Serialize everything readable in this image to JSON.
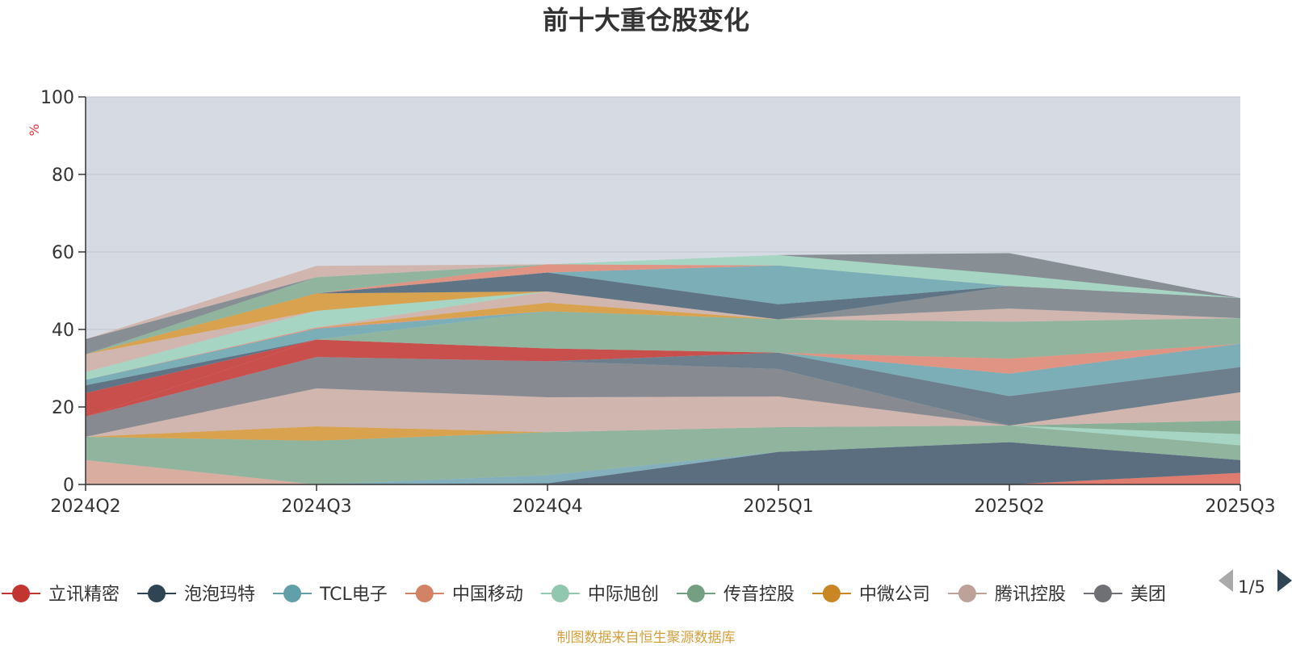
{
  "chart_data": {
    "type": "area",
    "title": "前十大重仓股变化",
    "ylabel": "%",
    "xlabel": "",
    "ylim": [
      0,
      100
    ],
    "y_ticks": [
      "0",
      "20",
      "40",
      "60",
      "80",
      "100"
    ],
    "categories": [
      "2024Q2",
      "2024Q3",
      "2024Q4",
      "2025Q1",
      "2025Q2",
      "2025Q3"
    ],
    "grid": true,
    "legend_position": "bottom",
    "legend_page": "1/5",
    "series_order_note": "bands listed bottom to top",
    "series": [
      {
        "name": "腾讯控股",
        "color": "#D9A797",
        "values": [
          6.3,
          0,
          0,
          0,
          0,
          0
        ]
      },
      {
        "name": "中国移动",
        "color": "#E06D5E",
        "values": [
          0,
          0,
          0,
          0,
          0,
          3.0
        ]
      },
      {
        "name": "泡泡玛特",
        "color": "#4A5F72",
        "values": [
          0,
          0,
          0.3,
          8.4,
          10.9,
          3.3
        ]
      },
      {
        "name": "TCL电子",
        "color": "#78AAB6",
        "values": [
          0,
          0,
          2.1,
          0,
          0,
          0
        ]
      },
      {
        "name": "传音控股",
        "color": "#86AE94",
        "values": [
          6.0,
          11.3,
          11.1,
          6.4,
          4.3,
          3.8
        ]
      },
      {
        "name": "中际旭创",
        "color": "#9FD4BE",
        "values": [
          0,
          0,
          0,
          0,
          0,
          2.9
        ]
      },
      {
        "name": "传音控股",
        "color": "#7FA88C",
        "values": [
          0,
          0,
          0,
          0,
          0,
          3.5
        ]
      },
      {
        "name": "中微公司",
        "color": "#D89A3A",
        "values": [
          0,
          3.7,
          0,
          0,
          0,
          0
        ]
      },
      {
        "name": "腾讯控股",
        "color": "#CFB0A6",
        "values": [
          0,
          9.8,
          9.0,
          7.9,
          0,
          7.3
        ]
      },
      {
        "name": "美团",
        "color": "#7C7F85",
        "values": [
          5.2,
          8.1,
          9.3,
          7.1,
          0,
          0
        ]
      },
      {
        "name": "泡泡玛特",
        "color": "#5E7280",
        "values": [
          0,
          0,
          0,
          4.2,
          7.6,
          6.5
        ]
      },
      {
        "name": "TCL电子",
        "color": "#6FA7B1",
        "values": [
          0,
          0,
          0,
          0,
          5.8,
          6.0
        ]
      },
      {
        "name": "中国移动",
        "color": "#E08A76",
        "values": [
          0,
          0,
          0,
          0,
          3.9,
          0
        ]
      },
      {
        "name": "立讯精密",
        "color": "#C73B38",
        "values": [
          0,
          4.5,
          3.3,
          0,
          0,
          0
        ]
      },
      {
        "name": "立讯精密",
        "color": "#C73B38",
        "values": [
          6.1,
          0,
          0,
          0,
          0,
          0
        ]
      },
      {
        "name": "中际旭创",
        "color": "#9FD4BE",
        "values": [
          0,
          0,
          0,
          0,
          0,
          0
        ]
      },
      {
        "name": "传音控股",
        "color": "#86AE94",
        "values": [
          0,
          0,
          9.6,
          8.6,
          9.5,
          6.6
        ]
      },
      {
        "name": "泡泡玛特",
        "color": "#4E6677",
        "values": [
          2.0,
          0,
          0,
          0,
          0,
          0
        ]
      },
      {
        "name": "TCL电子",
        "color": "#6FA7B1",
        "values": [
          1.4,
          2.8,
          0,
          0,
          0,
          0
        ]
      },
      {
        "name": "中国移动",
        "color": "#E08A76",
        "values": [
          0,
          0.3,
          0,
          0,
          0,
          0
        ]
      },
      {
        "name": "中微公司",
        "color": "#D89A3A",
        "values": [
          0,
          0,
          2.2,
          0,
          0,
          0
        ]
      },
      {
        "name": "腾讯控股",
        "color": "#CFB0A6",
        "values": [
          0,
          0,
          2.9,
          0,
          3.4,
          0
        ]
      },
      {
        "name": "美团",
        "color": "#7C8389",
        "values": [
          0,
          0,
          0,
          0,
          5.8,
          5.2
        ]
      },
      {
        "name": "中际旭创",
        "color": "#9FD4BE",
        "values": [
          2.0,
          4.3,
          0,
          0,
          0,
          0
        ]
      },
      {
        "name": "腾讯控股",
        "color": "#CFB0A6",
        "values": [
          4.6,
          0,
          0,
          0,
          0,
          0
        ]
      },
      {
        "name": "中微公司",
        "color": "#D89A3A",
        "values": [
          0,
          4.5,
          0,
          0,
          0,
          0
        ]
      },
      {
        "name": "泡泡玛特",
        "color": "#4E6677",
        "values": [
          0,
          0,
          4.9,
          3.9,
          0,
          0
        ]
      },
      {
        "name": "TCL电子",
        "color": "#6FA7B1",
        "values": [
          0,
          0,
          0,
          10.0,
          0,
          0
        ]
      },
      {
        "name": "中国移动",
        "color": "#E08A76",
        "values": [
          0,
          0,
          2.1,
          0,
          0,
          0
        ]
      },
      {
        "name": "中际旭创",
        "color": "#9FD4BE",
        "values": [
          0,
          0,
          0,
          2.7,
          3.0,
          0
        ]
      },
      {
        "name": "传音控股",
        "color": "#86AE94",
        "values": [
          0,
          4.2,
          0,
          0,
          0,
          0
        ]
      },
      {
        "name": "美团",
        "color": "#7C8389",
        "values": [
          3.9,
          0,
          0,
          0,
          5.5,
          0
        ]
      },
      {
        "name": "腾讯控股",
        "color": "#CFB0A6",
        "values": [
          0,
          2.9,
          0,
          0,
          0,
          0
        ]
      }
    ],
    "legend": [
      {
        "name": "立讯精密",
        "color": "#C23531"
      },
      {
        "name": "泡泡玛特",
        "color": "#2F4554"
      },
      {
        "name": "TCL电子",
        "color": "#61A0A8"
      },
      {
        "name": "中国移动",
        "color": "#D48265"
      },
      {
        "name": "中际旭创",
        "color": "#91C7AE"
      },
      {
        "name": "传音控股",
        "color": "#749F83"
      },
      {
        "name": "中微公司",
        "color": "#CA8622"
      },
      {
        "name": "腾讯控股",
        "color": "#BDA29A"
      },
      {
        "name": "美团",
        "color": "#6E7074"
      }
    ],
    "source_note": "制图数据来自恒生聚源数据库"
  },
  "colors": {
    "plot_bg": "#D6DBE3",
    "grid": "#C2C7CF",
    "axis": "#333333",
    "title": "#333333",
    "ylabel": "#E5323E",
    "source": "#D4A03C",
    "pager_active": "#2F4554",
    "pager_inactive": "#AAAAAA"
  }
}
